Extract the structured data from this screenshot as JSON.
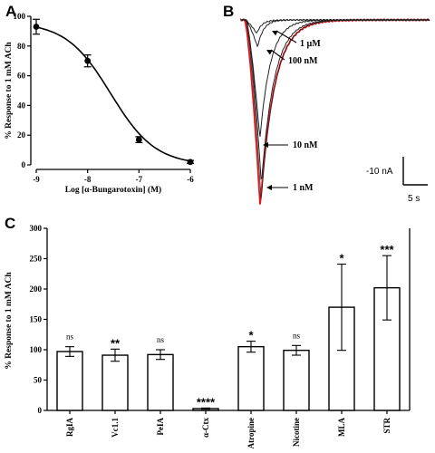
{
  "panels": {
    "a_letter": "A",
    "b_letter": "B",
    "c_letter": "C"
  },
  "chart_data": [
    {
      "panel": "A",
      "type": "line",
      "xlabel": "Log [α-Bungarotoxin] (M)",
      "ylabel": "% Response to 1 mM  ACh",
      "xlim": [
        -9,
        -6
      ],
      "ylim": [
        0,
        100
      ],
      "xticks": [
        "-9",
        "-8",
        "-7",
        "-6"
      ],
      "yticks": [
        "0",
        "20",
        "40",
        "60",
        "80",
        "100"
      ],
      "points": [
        {
          "x": -9,
          "y": 93,
          "err": 5
        },
        {
          "x": -8,
          "y": 70,
          "err": 4
        },
        {
          "x": -7,
          "y": 17,
          "err": 2
        },
        {
          "x": -6,
          "y": 2,
          "err": 1
        }
      ],
      "fit": {
        "top": 96,
        "bottom": 0,
        "log_ic50": -7.55,
        "hill": 1.0
      }
    },
    {
      "panel": "B",
      "type": "line",
      "trace_labels": [
        "1 µM",
        "100 nM",
        "10 nM",
        "1 nM"
      ],
      "trace_peaks_nA": [
        -1.2,
        -2.4,
        -10.5,
        -14.5
      ],
      "control_peak_nA": -16.5,
      "control_color": "#e8141c",
      "trace_color": "#222222",
      "scale_bar": {
        "current_label": "-10 nA",
        "time_label": "5 s"
      }
    },
    {
      "panel": "C",
      "type": "bar",
      "ylabel": "% Response to 1 mM ACh",
      "ylim": [
        0,
        300
      ],
      "yticks": [
        "0",
        "50",
        "100",
        "150",
        "200",
        "250",
        "300"
      ],
      "categories": [
        "RgIA",
        "Vc1.1",
        "PeIA",
        "α-Ctx",
        "Atropine",
        "Nicotine",
        "MLA",
        "STR"
      ],
      "values": [
        97,
        91,
        92,
        3,
        105,
        99,
        170,
        202
      ],
      "errors": [
        8,
        10,
        8,
        1,
        9,
        8,
        71,
        53
      ],
      "significance": [
        "ns",
        "**",
        "ns",
        "****",
        "*",
        "ns",
        "*",
        "***"
      ]
    }
  ]
}
